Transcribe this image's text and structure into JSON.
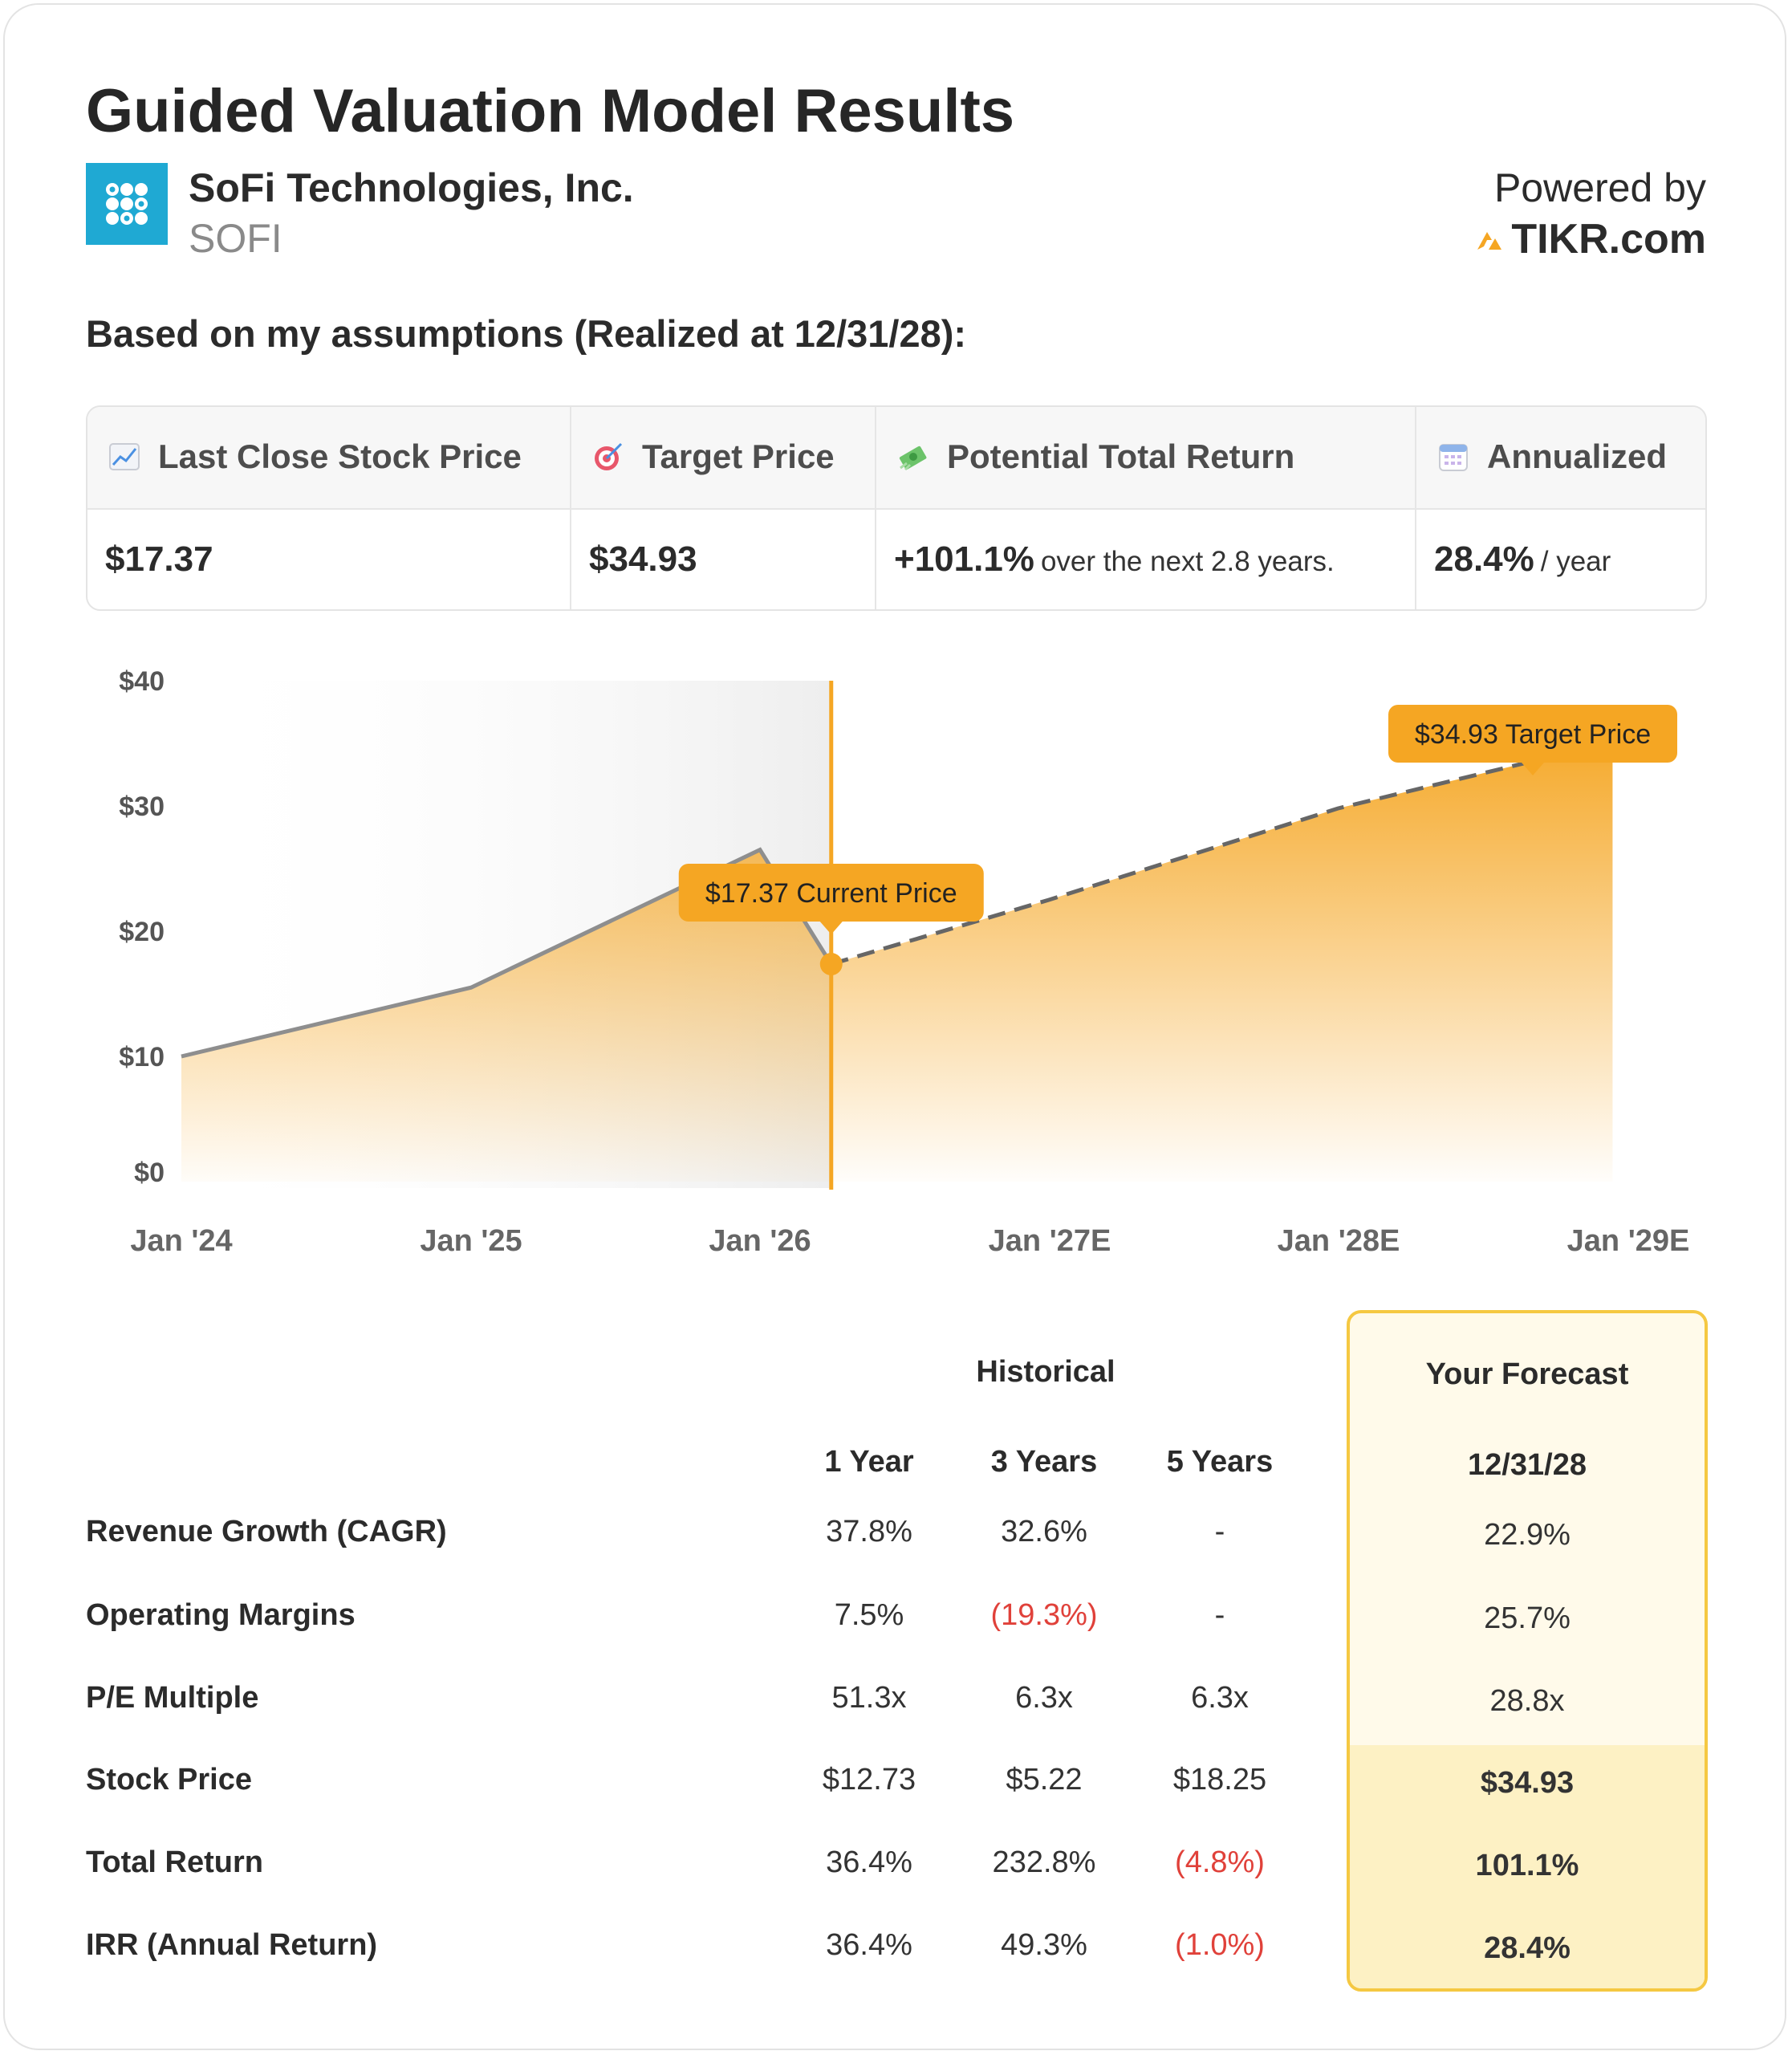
{
  "title": "Guided Valuation Model Results",
  "company": {
    "name": "SoFi Technologies, Inc.",
    "ticker": "SOFI"
  },
  "powered": {
    "label": "Powered by",
    "brand": "TIKR.com"
  },
  "subtitle": "Based on my assumptions (Realized at 12/31/28):",
  "summary": {
    "last_close": {
      "label": "Last Close Stock Price",
      "value": "$17.37",
      "icon": "chart-up-icon"
    },
    "target": {
      "label": "Target Price",
      "value": "$34.93",
      "icon": "target-icon"
    },
    "potential": {
      "label": "Potential Total Return",
      "value": "+101.1%",
      "note": "over the next 2.8 years.",
      "icon": "money-icon"
    },
    "annualized": {
      "label": "Annualized",
      "value": "28.4%",
      "note": "/ year",
      "icon": "calendar-icon"
    }
  },
  "chart_data": {
    "type": "area",
    "x_ticks": [
      "Jan '24",
      "Jan '25",
      "Jan '26",
      "Jan '27E",
      "Jan '28E",
      "Jan '29E"
    ],
    "y_ticks": [
      "$0",
      "$10",
      "$20",
      "$30",
      "$40"
    ],
    "ylim": [
      0,
      40
    ],
    "xlim": [
      "2024-01",
      "2029-01"
    ],
    "historical": [
      {
        "x": "2024-01",
        "y": 10
      },
      {
        "x": "2025-01",
        "y": 15.5
      },
      {
        "x": "2026-01",
        "y": 26.5
      },
      {
        "x": "2026-04",
        "y": 17.37
      }
    ],
    "forecast": [
      {
        "x": "2026-04",
        "y": 17.37
      },
      {
        "x": "2027-01",
        "y": 22.5
      },
      {
        "x": "2028-01",
        "y": 29.8
      },
      {
        "x": "2028-12",
        "y": 34.93
      }
    ],
    "current_label": "$17.37 Current Price",
    "target_label": "$34.93 Target Price",
    "colors": {
      "accent": "#f5a623",
      "line": "#8e8e8e",
      "dashed": "#666666"
    }
  },
  "table": {
    "group_historical": "Historical",
    "group_forecast": "Your Forecast",
    "columns": [
      "1 Year",
      "3 Years",
      "5 Years"
    ],
    "forecast_column": "12/31/28",
    "rows": [
      {
        "label": "Revenue Growth (CAGR)",
        "values": [
          "37.8%",
          "32.6%",
          "-"
        ],
        "forecast": "22.9%"
      },
      {
        "label": "Operating Margins",
        "values": [
          "7.5%",
          "(19.3%)",
          "-"
        ],
        "forecast": "25.7%"
      },
      {
        "label": "P/E Multiple",
        "values": [
          "51.3x",
          "6.3x",
          "6.3x"
        ],
        "forecast": "28.8x"
      },
      {
        "label": "Stock Price",
        "values": [
          "$12.73",
          "$5.22",
          "$18.25"
        ],
        "forecast": "$34.93"
      },
      {
        "label": "Total Return",
        "values": [
          "36.4%",
          "232.8%",
          "(4.8%)"
        ],
        "forecast": "101.1%"
      },
      {
        "label": "IRR (Annual Return)",
        "values": [
          "36.4%",
          "49.3%",
          "(1.0%)"
        ],
        "forecast": "28.4%"
      }
    ]
  }
}
